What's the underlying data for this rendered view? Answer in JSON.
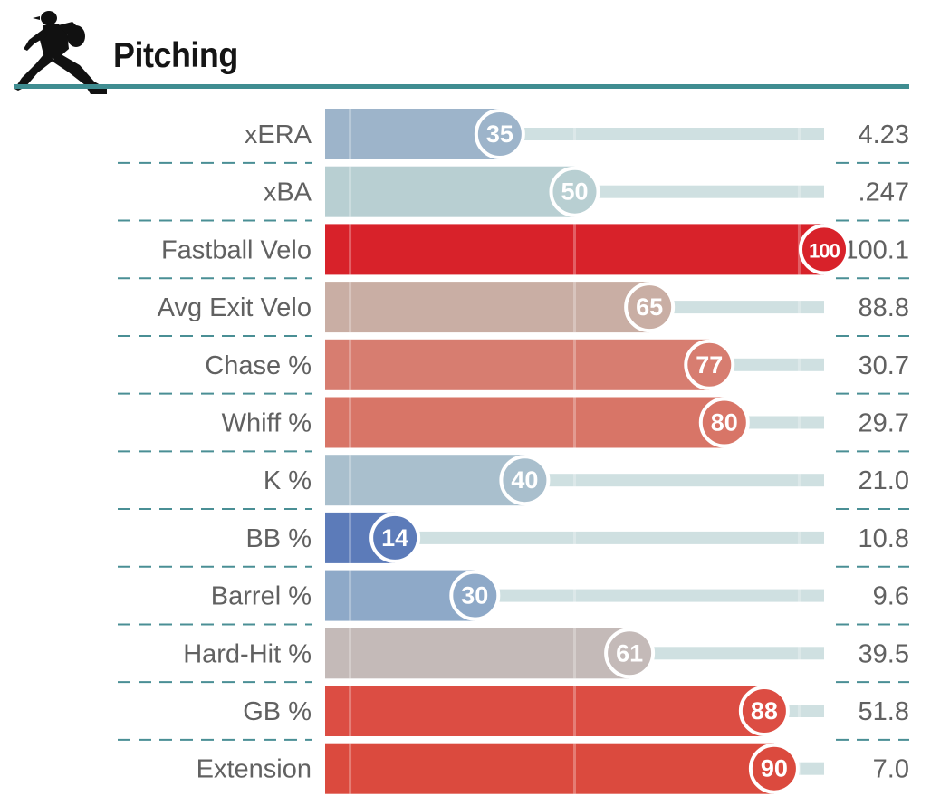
{
  "header": {
    "title": "Pitching",
    "icon": "pitcher-silhouette-icon"
  },
  "colors": {
    "accent_rule": "#3f8d91",
    "track": "#cfe0e1"
  },
  "chart_data": {
    "type": "bar",
    "title": "Pitching",
    "scale": [
      0,
      100
    ],
    "metrics": [
      {
        "label": "xERA",
        "percentile": 35,
        "value": "4.23",
        "color": "#9db4ca"
      },
      {
        "label": "xBA",
        "percentile": 50,
        "value": ".247",
        "color": "#b8cfd2"
      },
      {
        "label": "Fastball Velo",
        "percentile": 100,
        "value": "100.1",
        "color": "#d8222a"
      },
      {
        "label": "Avg Exit Velo",
        "percentile": 65,
        "value": "88.8",
        "color": "#c9aea4"
      },
      {
        "label": "Chase %",
        "percentile": 77,
        "value": "30.7",
        "color": "#d77d70"
      },
      {
        "label": "Whiff %",
        "percentile": 80,
        "value": "29.7",
        "color": "#d87567"
      },
      {
        "label": "K %",
        "percentile": 40,
        "value": "21.0",
        "color": "#a9bfcd"
      },
      {
        "label": "BB %",
        "percentile": 14,
        "value": "10.8",
        "color": "#5c7bb9"
      },
      {
        "label": "Barrel %",
        "percentile": 30,
        "value": "9.6",
        "color": "#8ea9c8"
      },
      {
        "label": "Hard-Hit %",
        "percentile": 61,
        "value": "39.5",
        "color": "#c4bab8"
      },
      {
        "label": "GB %",
        "percentile": 88,
        "value": "51.8",
        "color": "#dc4d43"
      },
      {
        "label": "Extension",
        "percentile": 90,
        "value": "7.0",
        "color": "#db4a3e"
      }
    ]
  }
}
